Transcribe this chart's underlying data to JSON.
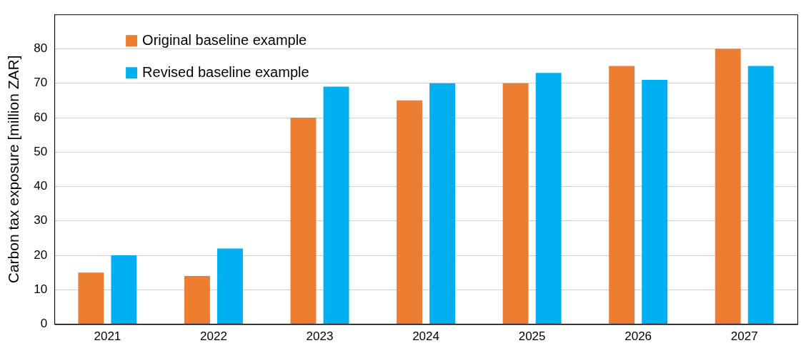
{
  "chart_data": {
    "type": "bar",
    "ylabel": "Carbon tax exposure [million ZAR]",
    "categories": [
      "2021",
      "2022",
      "2023",
      "2024",
      "2025",
      "2026",
      "2027"
    ],
    "series": [
      {
        "name": "Original baseline example",
        "color": "#ed7d31",
        "values": [
          15,
          14,
          60,
          65,
          70,
          75,
          80
        ]
      },
      {
        "name": "Revised baseline example",
        "color": "#00b0f0",
        "values": [
          20,
          22,
          69,
          70,
          73,
          71,
          75
        ]
      }
    ],
    "ylim": [
      0,
      90
    ],
    "yticks": [
      0,
      10,
      20,
      30,
      40,
      50,
      60,
      70,
      80
    ],
    "grid": "y",
    "legend": "top left"
  }
}
